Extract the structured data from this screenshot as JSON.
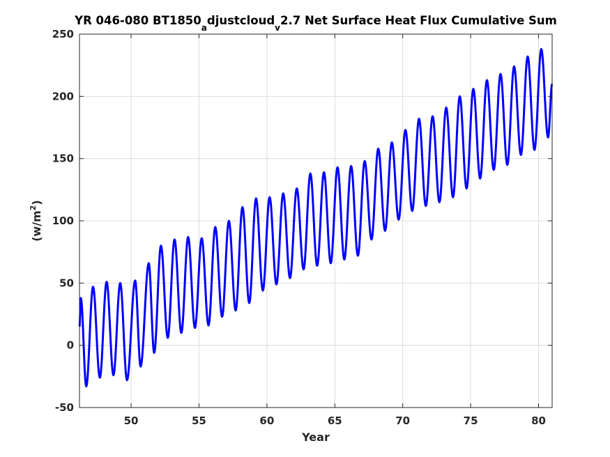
{
  "chart_data": {
    "type": "line",
    "title": {
      "part1": "YR 046-080 BT1850",
      "sub1": "a",
      "part2": "djustcloud",
      "sub2": "v",
      "part3": "2.7 Net Surface Heat Flux  Cumulative Sum"
    },
    "xlabel": "Year",
    "ylabel": {
      "text": "(w/m",
      "sup": "2",
      "close": ")"
    },
    "xlim": [
      46.2,
      81.0
    ],
    "ylim": [
      -50,
      250
    ],
    "xticks": [
      50,
      55,
      60,
      65,
      70,
      75,
      80
    ],
    "yticks": [
      -50,
      0,
      50,
      100,
      150,
      200,
      250
    ],
    "grid": true,
    "line_color": "#0000ff",
    "series": [
      {
        "peaks": [
          [
            46.3,
            38
          ],
          [
            47.2,
            47
          ],
          [
            48.2,
            51
          ],
          [
            49.2,
            50
          ],
          [
            50.3,
            52
          ],
          [
            51.3,
            66
          ],
          [
            52.2,
            80
          ],
          [
            53.2,
            85
          ],
          [
            54.2,
            87
          ],
          [
            55.2,
            86
          ],
          [
            56.2,
            95
          ],
          [
            57.2,
            100
          ],
          [
            58.2,
            111
          ],
          [
            59.2,
            118
          ],
          [
            60.2,
            119
          ],
          [
            61.2,
            122
          ],
          [
            62.2,
            126
          ],
          [
            63.2,
            138
          ],
          [
            64.2,
            139
          ],
          [
            65.2,
            143
          ],
          [
            66.2,
            144
          ],
          [
            67.2,
            148
          ],
          [
            68.2,
            158
          ],
          [
            69.2,
            163
          ],
          [
            70.2,
            173
          ],
          [
            71.2,
            182
          ],
          [
            72.2,
            184
          ],
          [
            73.2,
            191
          ],
          [
            74.2,
            200
          ],
          [
            75.2,
            206
          ],
          [
            76.2,
            213
          ],
          [
            77.2,
            218
          ],
          [
            78.2,
            224
          ],
          [
            79.2,
            232
          ],
          [
            80.2,
            238
          ]
        ],
        "troughs": [
          [
            46.7,
            -33
          ],
          [
            47.7,
            -26
          ],
          [
            48.7,
            -24
          ],
          [
            49.7,
            -28
          ],
          [
            50.7,
            -17
          ],
          [
            51.7,
            -6
          ],
          [
            52.7,
            6
          ],
          [
            53.7,
            10
          ],
          [
            54.7,
            14
          ],
          [
            55.7,
            16
          ],
          [
            56.7,
            23
          ],
          [
            57.7,
            28
          ],
          [
            58.7,
            34
          ],
          [
            59.7,
            44
          ],
          [
            60.7,
            49
          ],
          [
            61.7,
            54
          ],
          [
            62.7,
            61
          ],
          [
            63.7,
            64
          ],
          [
            64.7,
            66
          ],
          [
            65.7,
            69
          ],
          [
            66.7,
            72
          ],
          [
            67.7,
            85
          ],
          [
            68.7,
            92
          ],
          [
            69.7,
            101
          ],
          [
            70.7,
            108
          ],
          [
            71.7,
            112
          ],
          [
            72.7,
            115
          ],
          [
            73.7,
            119
          ],
          [
            74.7,
            126
          ],
          [
            75.7,
            134
          ],
          [
            76.7,
            141
          ],
          [
            77.7,
            145
          ],
          [
            78.7,
            153
          ],
          [
            79.7,
            157
          ],
          [
            80.7,
            167
          ]
        ],
        "start": [
          46.2,
          15
        ],
        "end": [
          81.0,
          210
        ]
      }
    ]
  }
}
